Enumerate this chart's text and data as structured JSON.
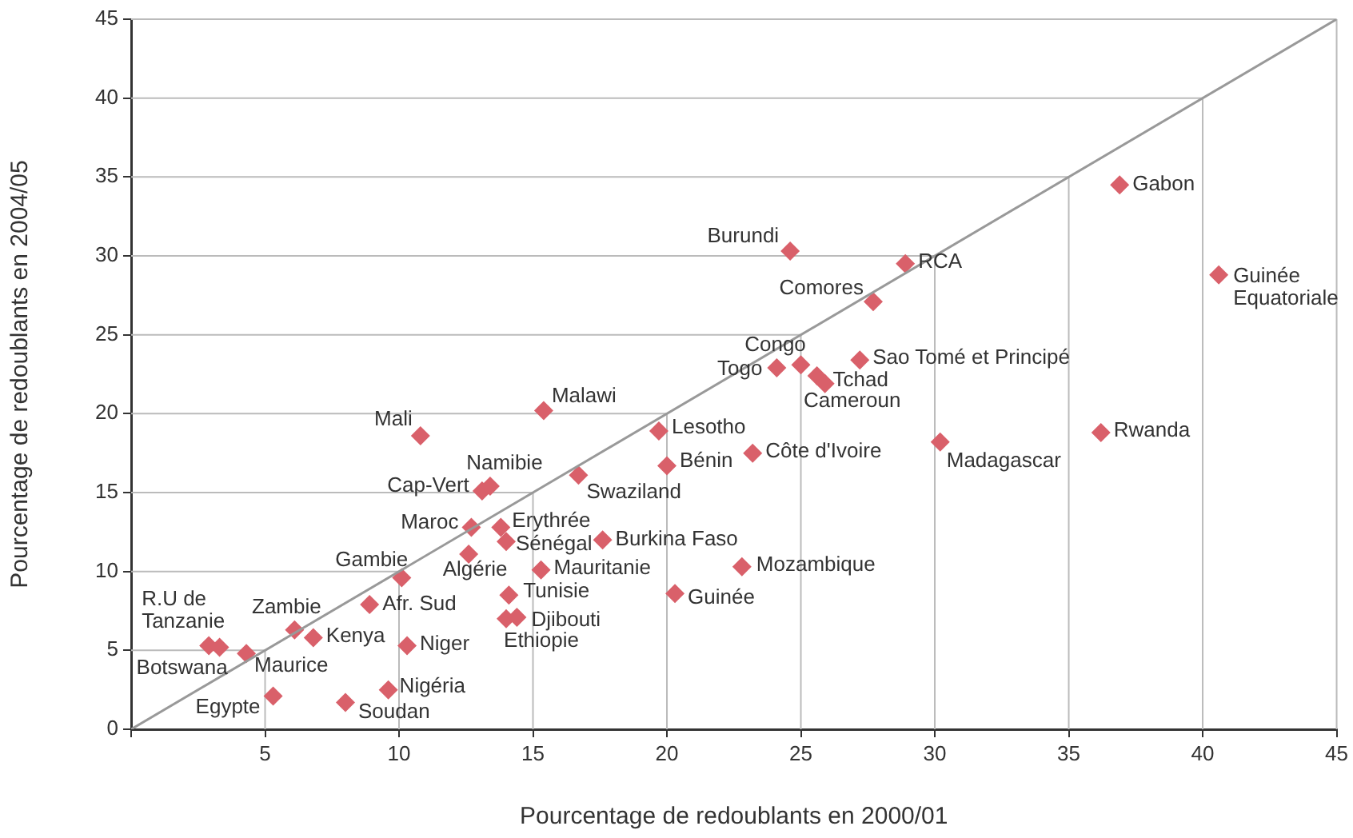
{
  "chart_data": {
    "type": "scatter",
    "xlabel": "Pourcentage de redoublants en 2000/01",
    "ylabel": "Pourcentage de redoublants en 2004/05",
    "xlim": [
      0,
      45
    ],
    "ylim": [
      0,
      45
    ],
    "xticks": [
      {
        "value": 0,
        "label": null
      },
      5,
      10,
      15,
      20,
      25,
      30,
      35,
      40,
      45
    ],
    "yticks": [
      0,
      5,
      10,
      15,
      20,
      25,
      30,
      35,
      40,
      45
    ],
    "grid": true,
    "legend": false,
    "marker": "diamond",
    "series": [
      {
        "color": "#d9606a",
        "x": [
          2.9,
          3.3,
          4.3,
          5.3,
          6.1,
          6.8,
          8.0,
          8.9,
          9.6,
          10.3,
          10.1,
          10.8,
          12.6,
          12.7,
          13.1,
          13.4,
          13.8,
          14.0,
          14.0,
          14.4,
          14.1,
          15.3,
          15.4,
          16.7,
          17.6,
          19.7,
          20.0,
          20.3,
          23.2,
          22.8,
          24.1,
          24.6,
          25.0,
          25.6,
          25.9,
          27.2,
          27.7,
          28.9,
          30.2,
          36.9,
          36.2,
          40.6
        ],
        "values": [
          5.3,
          5.2,
          4.8,
          2.1,
          6.3,
          5.8,
          1.7,
          7.9,
          2.5,
          5.3,
          9.6,
          18.6,
          11.1,
          12.8,
          15.1,
          15.4,
          12.8,
          11.9,
          7.0,
          7.1,
          8.5,
          10.1,
          20.2,
          16.1,
          12.0,
          18.9,
          16.7,
          8.6,
          17.5,
          10.3,
          22.9,
          30.3,
          23.1,
          22.4,
          21.9,
          23.4,
          27.1,
          29.5,
          18.2,
          34.5,
          18.8,
          28.8
        ]
      },
      {
        "type": "line",
        "color": "#999999",
        "marker": "none",
        "x": [
          0,
          45
        ],
        "values": [
          0,
          45
        ]
      }
    ],
    "annotations": [
      {
        "text": "R.U de Tanzanie",
        "x": 2.9,
        "y": 5.3
      },
      {
        "text": "Botswana",
        "x": 3.3,
        "y": 5.2
      },
      {
        "text": "Maurice",
        "x": 4.3,
        "y": 4.8
      },
      {
        "text": "Egypte",
        "x": 5.3,
        "y": 2.1
      },
      {
        "text": "Zambie",
        "x": 6.1,
        "y": 6.3
      },
      {
        "text": "Kenya",
        "x": 6.8,
        "y": 5.8
      },
      {
        "text": "Soudan",
        "x": 8.0,
        "y": 1.7
      },
      {
        "text": "Afr. Sud",
        "x": 8.9,
        "y": 7.9
      },
      {
        "text": "Nigéria",
        "x": 9.6,
        "y": 2.5
      },
      {
        "text": "Niger",
        "x": 10.3,
        "y": 5.3
      },
      {
        "text": "Gambie",
        "x": 10.1,
        "y": 9.6
      },
      {
        "text": "Mali",
        "x": 10.8,
        "y": 18.6
      },
      {
        "text": "Algérie",
        "x": 12.6,
        "y": 11.1
      },
      {
        "text": "Maroc",
        "x": 12.7,
        "y": 12.8
      },
      {
        "text": "Cap-Vert",
        "x": 13.1,
        "y": 15.1
      },
      {
        "text": "Namibie",
        "x": 13.4,
        "y": 15.4
      },
      {
        "text": "Erythrée",
        "x": 13.8,
        "y": 12.8
      },
      {
        "text": "Sénégal",
        "x": 14.0,
        "y": 11.9
      },
      {
        "text": "Ethiopie",
        "x": 14.0,
        "y": 7.0
      },
      {
        "text": "Djibouti",
        "x": 14.4,
        "y": 7.1
      },
      {
        "text": "Tunisie",
        "x": 14.1,
        "y": 8.5
      },
      {
        "text": "Mauritanie",
        "x": 15.3,
        "y": 10.1
      },
      {
        "text": "Malawi",
        "x": 15.4,
        "y": 20.2
      },
      {
        "text": "Swaziland",
        "x": 16.7,
        "y": 16.1
      },
      {
        "text": "Burkina Faso",
        "x": 17.6,
        "y": 12.0
      },
      {
        "text": "Lesotho",
        "x": 19.7,
        "y": 18.9
      },
      {
        "text": "Bénin",
        "x": 20.0,
        "y": 16.7
      },
      {
        "text": "Guinée",
        "x": 20.3,
        "y": 8.6
      },
      {
        "text": "Côte d'Ivoire",
        "x": 23.2,
        "y": 17.5
      },
      {
        "text": "Mozambique",
        "x": 22.8,
        "y": 10.3
      },
      {
        "text": "Togo",
        "x": 24.1,
        "y": 22.9
      },
      {
        "text": "Burundi",
        "x": 24.6,
        "y": 30.3
      },
      {
        "text": "Congo",
        "x": 25.0,
        "y": 23.1
      },
      {
        "text": "Tchad",
        "x": 25.6,
        "y": 22.4
      },
      {
        "text": "Cameroun",
        "x": 25.9,
        "y": 21.9
      },
      {
        "text": "Sao Tomé et Principé",
        "x": 27.2,
        "y": 23.4
      },
      {
        "text": "Comores",
        "x": 27.7,
        "y": 27.1
      },
      {
        "text": "RCA",
        "x": 28.9,
        "y": 29.5
      },
      {
        "text": "Madagascar",
        "x": 30.2,
        "y": 18.2
      },
      {
        "text": "Gabon",
        "x": 36.9,
        "y": 34.5
      },
      {
        "text": "Rwanda",
        "x": 36.2,
        "y": 18.8
      },
      {
        "text": "Guinée Equatoriale",
        "x": 40.6,
        "y": 28.8
      }
    ]
  }
}
